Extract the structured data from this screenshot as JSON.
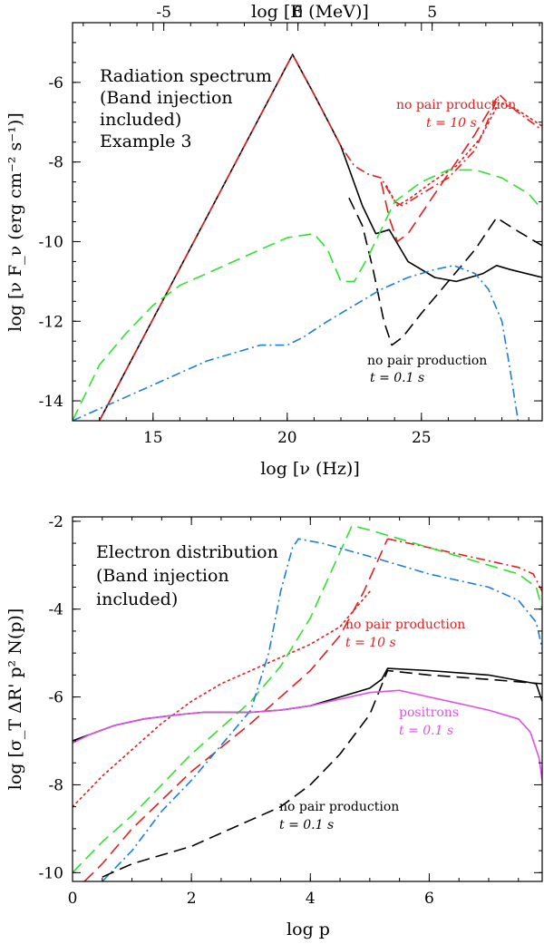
{
  "chart_data": [
    {
      "type": "line",
      "title": "",
      "xlabel": "log [ν (Hz)]",
      "ylabel": "log [ν F_ν (erg cm⁻² s⁻¹)]",
      "x2label": "log [E (MeV)]",
      "xlim": [
        12,
        29.5
      ],
      "ylim": [
        -14.5,
        -4.5
      ],
      "x2lim": [
        -8.4,
        9.1
      ],
      "xticks": [
        15,
        20,
        25
      ],
      "yticks": [
        -14,
        -12,
        -10,
        -8,
        -6
      ],
      "x2ticks": [
        -5,
        0,
        5
      ],
      "annotations": {
        "main": [
          "Radiation spectrum",
          "(Band injection",
          "included)",
          "Example 3"
        ],
        "red": [
          "no pair production",
          "t = 10 s"
        ],
        "black": [
          "no pair production",
          "t = 0.1 s"
        ]
      },
      "series": [
        {
          "name": "black solid",
          "color": "#000000",
          "dash": "solid",
          "x": [
            13.0,
            20.2,
            21.0,
            22.0,
            22.8,
            23.3,
            23.8,
            24.5,
            25.5,
            26.3,
            27.3,
            27.8,
            28.3,
            29.5
          ],
          "y": [
            -14.5,
            -5.3,
            -6.3,
            -7.6,
            -9.1,
            -9.8,
            -9.7,
            -10.5,
            -10.9,
            -11.0,
            -10.8,
            -10.6,
            -10.7,
            -10.9
          ]
        },
        {
          "name": "black dashed",
          "color": "#000000",
          "dash": "dash",
          "x": [
            22.3,
            22.8,
            23.2,
            23.6,
            23.9,
            24.3,
            25.0,
            26.0,
            27.0,
            27.8,
            28.5,
            29.5
          ],
          "y": [
            -8.9,
            -9.6,
            -10.7,
            -12.0,
            -12.6,
            -12.4,
            -11.8,
            -11.0,
            -10.2,
            -9.4,
            -9.7,
            -10.1
          ]
        },
        {
          "name": "red dash-dot",
          "color": "#e02020",
          "dash": "dashdot",
          "x": [
            13.0,
            20.2,
            21.0,
            22.0,
            22.5,
            23.0,
            23.5,
            24.0,
            24.3,
            25.0,
            26.0,
            27.0,
            27.9,
            28.5,
            29.5
          ],
          "y": [
            -14.5,
            -5.3,
            -6.3,
            -7.6,
            -8.1,
            -8.3,
            -8.4,
            -9.0,
            -9.1,
            -8.8,
            -8.4,
            -7.7,
            -6.3,
            -6.7,
            -7.2
          ]
        },
        {
          "name": "red dashed",
          "color": "#e02020",
          "dash": "dash",
          "x": [
            23.5,
            23.8,
            24.1,
            24.5,
            25.2,
            26.0,
            27.0,
            27.8
          ],
          "y": [
            -8.5,
            -9.4,
            -10.0,
            -9.8,
            -9.1,
            -8.3,
            -7.3,
            -6.4
          ]
        },
        {
          "name": "red dotted",
          "color": "#e02020",
          "dash": "dot",
          "x": [
            23.7,
            24.1,
            24.6,
            25.4,
            26.3,
            27.2,
            27.9,
            28.6,
            29.5
          ],
          "y": [
            -8.6,
            -9.1,
            -8.9,
            -8.5,
            -8.1,
            -7.4,
            -6.5,
            -6.7,
            -7.1
          ]
        },
        {
          "name": "green dashed",
          "color": "#2ee22e",
          "dash": "dash",
          "x": [
            12.0,
            12.5,
            13.0,
            14.0,
            15.0,
            16.0,
            17.0,
            18.0,
            19.0,
            20.0,
            21.0,
            21.5,
            22.0,
            22.5,
            23.0,
            23.5,
            24.0,
            25.0,
            26.0,
            27.0,
            28.0,
            29.0,
            29.5
          ],
          "y": [
            -14.5,
            -13.8,
            -13.1,
            -12.3,
            -11.6,
            -11.1,
            -10.8,
            -10.5,
            -10.2,
            -9.9,
            -9.8,
            -10.2,
            -11.0,
            -11.0,
            -10.4,
            -9.7,
            -9.0,
            -8.5,
            -8.2,
            -8.2,
            -8.4,
            -8.8,
            -9.2
          ]
        },
        {
          "name": "blue dash-dot",
          "color": "#1a7ee0",
          "dash": "dashdot",
          "x": [
            12.0,
            13.0,
            14.0,
            15.0,
            16.0,
            17.0,
            18.0,
            19.0,
            20.0,
            20.6,
            21.5,
            22.5,
            23.5,
            24.5,
            25.5,
            26.2,
            27.0,
            27.5,
            28.0,
            28.3,
            28.6
          ],
          "y": [
            -14.5,
            -14.2,
            -13.9,
            -13.6,
            -13.3,
            -13.0,
            -12.8,
            -12.6,
            -12.6,
            -12.4,
            -12.0,
            -11.6,
            -11.2,
            -10.9,
            -10.7,
            -10.6,
            -10.8,
            -11.2,
            -12.0,
            -13.2,
            -14.5
          ]
        }
      ]
    },
    {
      "type": "line",
      "title": "",
      "xlabel": "log p",
      "ylabel": "log [σ_T ΔR' p² N(p)]",
      "xlim": [
        0,
        7.9
      ],
      "ylim": [
        -10.2,
        -1.9
      ],
      "xticks": [
        0,
        2,
        4,
        6
      ],
      "yticks": [
        -10,
        -8,
        -6,
        -4,
        -2
      ],
      "annotations": {
        "main": [
          "Electron distribution",
          "(Band injection",
          "included)"
        ],
        "red": [
          "no pair production",
          "t = 10 s"
        ],
        "pink": [
          "positrons",
          "t = 0.1 s"
        ],
        "black": [
          "no pair production",
          "t = 0.1 s"
        ]
      },
      "series": [
        {
          "name": "red dotted",
          "color": "#e02020",
          "dash": "dot",
          "x": [
            0.0,
            0.5,
            1.0,
            1.5,
            2.0,
            2.5,
            3.0,
            3.5,
            4.0,
            4.5,
            5.0
          ],
          "y": [
            -8.5,
            -7.8,
            -7.2,
            -6.6,
            -6.1,
            -5.7,
            -5.4,
            -5.1,
            -4.8,
            -4.4,
            -3.6
          ]
        },
        {
          "name": "red dashed",
          "color": "#e02020",
          "dash": "dash",
          "x": [
            0.2,
            0.5,
            1.0,
            2.0,
            3.0,
            4.0,
            4.5,
            4.9,
            5.3
          ],
          "y": [
            -10.2,
            -9.8,
            -9.0,
            -7.7,
            -6.6,
            -5.4,
            -4.6,
            -3.6,
            -2.4
          ]
        },
        {
          "name": "red dash-dot",
          "color": "#e02020",
          "dash": "dashdot",
          "x": [
            5.3,
            6.0,
            6.5,
            7.0,
            7.5,
            7.75,
            7.9
          ],
          "y": [
            -2.4,
            -2.6,
            -2.75,
            -2.9,
            -3.05,
            -3.2,
            -3.6
          ]
        },
        {
          "name": "green dashed",
          "color": "#2ee22e",
          "dash": "dash",
          "x": [
            0.0,
            0.5,
            1.0,
            1.5,
            2.0,
            2.5,
            3.0,
            3.5,
            4.0,
            4.4,
            4.7,
            5.0,
            5.5,
            6.0,
            6.5,
            7.0,
            7.5,
            7.8,
            7.9
          ],
          "y": [
            -10.0,
            -9.3,
            -8.7,
            -8.0,
            -7.3,
            -6.7,
            -6.1,
            -5.3,
            -4.2,
            -3.0,
            -2.1,
            -2.2,
            -2.4,
            -2.6,
            -2.8,
            -3.0,
            -3.2,
            -3.5,
            -4.0
          ]
        },
        {
          "name": "blue dash-dot",
          "color": "#1a7ee0",
          "dash": "dashdot",
          "x": [
            0.5,
            1.0,
            1.5,
            2.0,
            2.5,
            3.0,
            3.3,
            3.5,
            3.7,
            3.8,
            4.2,
            5.0,
            6.0,
            7.0,
            7.5,
            7.8,
            7.9
          ],
          "y": [
            -10.2,
            -9.5,
            -8.6,
            -7.9,
            -7.1,
            -6.3,
            -5.0,
            -3.6,
            -2.6,
            -2.4,
            -2.5,
            -2.8,
            -3.2,
            -3.5,
            -3.8,
            -4.3,
            -4.9
          ]
        },
        {
          "name": "black solid",
          "color": "#000000",
          "dash": "solid",
          "x": [
            0.0,
            0.3,
            0.7,
            1.2,
            1.8,
            2.2,
            2.6,
            3.0,
            3.5,
            4.0,
            4.5,
            5.0,
            5.2,
            5.3,
            6.0,
            7.0,
            7.8,
            7.9
          ],
          "y": [
            -7.0,
            -6.85,
            -6.65,
            -6.5,
            -6.4,
            -6.35,
            -6.35,
            -6.35,
            -6.3,
            -6.2,
            -6.0,
            -5.8,
            -5.6,
            -5.35,
            -5.4,
            -5.5,
            -5.7,
            -6.1
          ]
        },
        {
          "name": "black dashed",
          "color": "#000000",
          "dash": "dash",
          "x": [
            0.5,
            1.0,
            1.5,
            2.0,
            2.5,
            3.0,
            3.5,
            4.0,
            4.5,
            5.0,
            5.3,
            6.0,
            7.0,
            7.9
          ],
          "y": [
            -10.1,
            -9.8,
            -9.6,
            -9.4,
            -9.1,
            -8.8,
            -8.5,
            -8.0,
            -7.3,
            -6.4,
            -5.4,
            -5.5,
            -5.6,
            -5.7
          ]
        },
        {
          "name": "pink solid",
          "color": "#e050e8",
          "dash": "solid",
          "x": [
            0.0,
            0.3,
            0.7,
            1.2,
            1.8,
            2.2,
            2.6,
            3.0,
            3.5,
            4.0,
            4.5,
            5.0,
            5.5,
            6.0,
            6.5,
            7.0,
            7.5,
            7.7,
            7.85,
            7.9
          ],
          "y": [
            -7.05,
            -6.85,
            -6.65,
            -6.5,
            -6.4,
            -6.35,
            -6.35,
            -6.35,
            -6.3,
            -6.2,
            -6.05,
            -5.9,
            -5.85,
            -6.0,
            -6.15,
            -6.3,
            -6.5,
            -6.8,
            -7.4,
            -7.9
          ]
        }
      ]
    }
  ]
}
